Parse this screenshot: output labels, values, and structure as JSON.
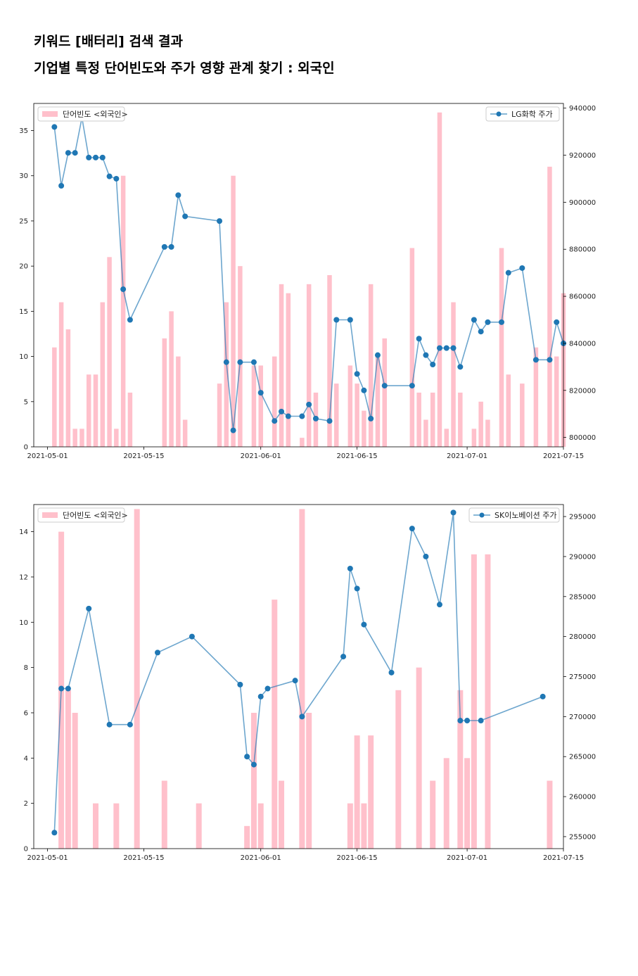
{
  "page": {
    "title": "키워드 [배터리] 검색 결과",
    "subtitle": "기업별 특정 단어빈도와 주가 영향 관계 찾기 : 외국인"
  },
  "colors": {
    "bar": "#ffc0cb",
    "line": "#1f77b4"
  },
  "chart_data": [
    {
      "type": "bar+line",
      "bar_series_name": "단어빈도 <외국인>",
      "line_series_name": "LG화학 주가",
      "legend_bar": "upper-left",
      "legend_line": "upper-right",
      "xlim": [
        "2021-04-29",
        "2021-07-15"
      ],
      "x_ticks": [
        "2021-05-01",
        "2021-05-15",
        "2021-06-01",
        "2021-06-15",
        "2021-07-01",
        "2021-07-15"
      ],
      "y_left_lim": [
        0,
        38
      ],
      "y_left_ticks": [
        0,
        5,
        10,
        15,
        20,
        25,
        30,
        35
      ],
      "y_right_lim": [
        796000,
        942000
      ],
      "y_right_ticks": [
        800000,
        820000,
        840000,
        860000,
        880000,
        900000,
        920000,
        940000
      ],
      "bars": [
        [
          "2021-05-02",
          11
        ],
        [
          "2021-05-03",
          16
        ],
        [
          "2021-05-04",
          13
        ],
        [
          "2021-05-05",
          2
        ],
        [
          "2021-05-06",
          2
        ],
        [
          "2021-05-07",
          8
        ],
        [
          "2021-05-08",
          8
        ],
        [
          "2021-05-09",
          16
        ],
        [
          "2021-05-10",
          21
        ],
        [
          "2021-05-11",
          2
        ],
        [
          "2021-05-12",
          30
        ],
        [
          "2021-05-13",
          6
        ],
        [
          "2021-05-18",
          12
        ],
        [
          "2021-05-19",
          15
        ],
        [
          "2021-05-20",
          10
        ],
        [
          "2021-05-21",
          3
        ],
        [
          "2021-05-26",
          7
        ],
        [
          "2021-05-27",
          16
        ],
        [
          "2021-05-28",
          30
        ],
        [
          "2021-05-29",
          20
        ],
        [
          "2021-05-31",
          9
        ],
        [
          "2021-06-01",
          9
        ],
        [
          "2021-06-03",
          10
        ],
        [
          "2021-06-04",
          18
        ],
        [
          "2021-06-05",
          17
        ],
        [
          "2021-06-07",
          1
        ],
        [
          "2021-06-08",
          18
        ],
        [
          "2021-06-09",
          6
        ],
        [
          "2021-06-11",
          19
        ],
        [
          "2021-06-12",
          7
        ],
        [
          "2021-06-14",
          9
        ],
        [
          "2021-06-15",
          7
        ],
        [
          "2021-06-16",
          4
        ],
        [
          "2021-06-17",
          18
        ],
        [
          "2021-06-18",
          10
        ],
        [
          "2021-06-19",
          12
        ],
        [
          "2021-06-23",
          22
        ],
        [
          "2021-06-24",
          6
        ],
        [
          "2021-06-25",
          3
        ],
        [
          "2021-06-26",
          6
        ],
        [
          "2021-06-27",
          37
        ],
        [
          "2021-06-28",
          2
        ],
        [
          "2021-06-29",
          16
        ],
        [
          "2021-06-30",
          6
        ],
        [
          "2021-07-02",
          2
        ],
        [
          "2021-07-03",
          5
        ],
        [
          "2021-07-04",
          3
        ],
        [
          "2021-07-06",
          22
        ],
        [
          "2021-07-07",
          8
        ],
        [
          "2021-07-09",
          7
        ],
        [
          "2021-07-11",
          11
        ],
        [
          "2021-07-13",
          31
        ],
        [
          "2021-07-14",
          10
        ],
        [
          "2021-07-15",
          17
        ]
      ],
      "line": [
        [
          "2021-05-02",
          932000
        ],
        [
          "2021-05-03",
          907000
        ],
        [
          "2021-05-04",
          921000
        ],
        [
          "2021-05-05",
          921000
        ],
        [
          "2021-05-06",
          936000
        ],
        [
          "2021-05-07",
          919000
        ],
        [
          "2021-05-08",
          919000
        ],
        [
          "2021-05-09",
          919000
        ],
        [
          "2021-05-10",
          911000
        ],
        [
          "2021-05-11",
          910000
        ],
        [
          "2021-05-12",
          863000
        ],
        [
          "2021-05-13",
          850000
        ],
        [
          "2021-05-18",
          881000
        ],
        [
          "2021-05-19",
          881000
        ],
        [
          "2021-05-20",
          903000
        ],
        [
          "2021-05-21",
          894000
        ],
        [
          "2021-05-26",
          892000
        ],
        [
          "2021-05-27",
          832000
        ],
        [
          "2021-05-28",
          803000
        ],
        [
          "2021-05-29",
          832000
        ],
        [
          "2021-05-31",
          832000
        ],
        [
          "2021-06-01",
          819000
        ],
        [
          "2021-06-03",
          807000
        ],
        [
          "2021-06-04",
          811000
        ],
        [
          "2021-06-05",
          809000
        ],
        [
          "2021-06-07",
          809000
        ],
        [
          "2021-06-08",
          814000
        ],
        [
          "2021-06-09",
          808000
        ],
        [
          "2021-06-11",
          807000
        ],
        [
          "2021-06-12",
          850000
        ],
        [
          "2021-06-14",
          850000
        ],
        [
          "2021-06-15",
          827000
        ],
        [
          "2021-06-16",
          820000
        ],
        [
          "2021-06-17",
          808000
        ],
        [
          "2021-06-18",
          835000
        ],
        [
          "2021-06-19",
          822000
        ],
        [
          "2021-06-23",
          822000
        ],
        [
          "2021-06-24",
          842000
        ],
        [
          "2021-06-25",
          835000
        ],
        [
          "2021-06-26",
          831000
        ],
        [
          "2021-06-27",
          838000
        ],
        [
          "2021-06-28",
          838000
        ],
        [
          "2021-06-29",
          838000
        ],
        [
          "2021-06-30",
          830000
        ],
        [
          "2021-07-02",
          850000
        ],
        [
          "2021-07-03",
          845000
        ],
        [
          "2021-07-04",
          849000
        ],
        [
          "2021-07-06",
          849000
        ],
        [
          "2021-07-07",
          870000
        ],
        [
          "2021-07-09",
          872000
        ],
        [
          "2021-07-11",
          833000
        ],
        [
          "2021-07-13",
          833000
        ],
        [
          "2021-07-14",
          849000
        ],
        [
          "2021-07-15",
          840000
        ]
      ]
    },
    {
      "type": "bar+line",
      "bar_series_name": "단어빈도 <외국인>",
      "line_series_name": "SK이노베이션 주가",
      "legend_bar": "upper-left",
      "legend_line": "upper-right",
      "xlim": [
        "2021-04-29",
        "2021-07-15"
      ],
      "x_ticks": [
        "2021-05-01",
        "2021-05-15",
        "2021-06-01",
        "2021-06-15",
        "2021-07-01",
        "2021-07-15"
      ],
      "y_left_lim": [
        0,
        15.2
      ],
      "y_left_ticks": [
        0,
        2,
        4,
        6,
        8,
        10,
        12,
        14
      ],
      "y_right_lim": [
        253500,
        296500
      ],
      "y_right_ticks": [
        255000,
        260000,
        265000,
        270000,
        275000,
        280000,
        285000,
        290000,
        295000
      ],
      "bars": [
        [
          "2021-05-03",
          14
        ],
        [
          "2021-05-04",
          7
        ],
        [
          "2021-05-05",
          6
        ],
        [
          "2021-05-08",
          2
        ],
        [
          "2021-05-11",
          2
        ],
        [
          "2021-05-14",
          15
        ],
        [
          "2021-05-18",
          3
        ],
        [
          "2021-05-23",
          2
        ],
        [
          "2021-05-30",
          1
        ],
        [
          "2021-05-31",
          6
        ],
        [
          "2021-06-01",
          2
        ],
        [
          "2021-06-03",
          11
        ],
        [
          "2021-06-04",
          3
        ],
        [
          "2021-06-07",
          15
        ],
        [
          "2021-06-08",
          6
        ],
        [
          "2021-06-14",
          2
        ],
        [
          "2021-06-15",
          5
        ],
        [
          "2021-06-16",
          2
        ],
        [
          "2021-06-17",
          5
        ],
        [
          "2021-06-21",
          7
        ],
        [
          "2021-06-24",
          8
        ],
        [
          "2021-06-26",
          3
        ],
        [
          "2021-06-28",
          4
        ],
        [
          "2021-06-30",
          7
        ],
        [
          "2021-07-01",
          4
        ],
        [
          "2021-07-02",
          13
        ],
        [
          "2021-07-04",
          13
        ],
        [
          "2021-07-13",
          3
        ]
      ],
      "line": [
        [
          "2021-05-02",
          255500
        ],
        [
          "2021-05-03",
          273500
        ],
        [
          "2021-05-04",
          273500
        ],
        [
          "2021-05-07",
          283500
        ],
        [
          "2021-05-10",
          269000
        ],
        [
          "2021-05-13",
          269000
        ],
        [
          "2021-05-17",
          278000
        ],
        [
          "2021-05-22",
          280000
        ],
        [
          "2021-05-29",
          274000
        ],
        [
          "2021-05-30",
          265000
        ],
        [
          "2021-05-31",
          264000
        ],
        [
          "2021-06-01",
          272500
        ],
        [
          "2021-06-02",
          273500
        ],
        [
          "2021-06-06",
          274500
        ],
        [
          "2021-06-07",
          270000
        ],
        [
          "2021-06-13",
          277500
        ],
        [
          "2021-06-14",
          288500
        ],
        [
          "2021-06-15",
          286000
        ],
        [
          "2021-06-16",
          281500
        ],
        [
          "2021-06-20",
          275500
        ],
        [
          "2021-06-23",
          293500
        ],
        [
          "2021-06-25",
          290000
        ],
        [
          "2021-06-27",
          284000
        ],
        [
          "2021-06-29",
          295500
        ],
        [
          "2021-06-30",
          269500
        ],
        [
          "2021-07-01",
          269500
        ],
        [
          "2021-07-03",
          269500
        ],
        [
          "2021-07-12",
          272500
        ]
      ]
    }
  ]
}
